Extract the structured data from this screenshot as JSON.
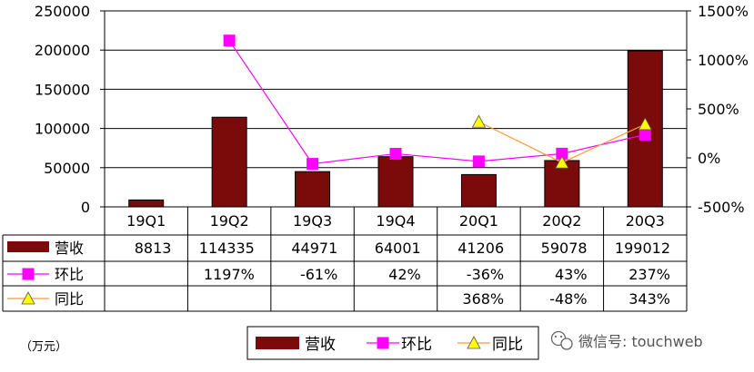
{
  "chart_data": {
    "type": "bar",
    "categories": [
      "19Q1",
      "19Q2",
      "19Q3",
      "19Q4",
      "20Q1",
      "20Q2",
      "20Q3"
    ],
    "y_left": {
      "ylim": [
        0,
        250000
      ],
      "ticks": [
        "0",
        "50000",
        "100000",
        "150000",
        "200000",
        "250000"
      ]
    },
    "y_right": {
      "ylim": [
        -500,
        1500
      ],
      "ticks": [
        "-500%",
        "0%",
        "500%",
        "1000%",
        "1500%"
      ]
    },
    "series": [
      {
        "name": "营收",
        "type": "bar",
        "axis": "left",
        "color": "#7b0b0b",
        "values": [
          8813,
          114335,
          44971,
          64001,
          41206,
          59078,
          199012
        ],
        "labels": [
          "8813",
          "114335",
          "44971",
          "64001",
          "41206",
          "59078",
          "199012"
        ]
      },
      {
        "name": "环比",
        "type": "line",
        "axis": "right",
        "color": "#ff00ff",
        "marker": "square",
        "values": [
          null,
          1197,
          -61,
          42,
          -36,
          43,
          237
        ],
        "labels": [
          "",
          "1197%",
          "-61%",
          "42%",
          "-36%",
          "43%",
          "237%"
        ]
      },
      {
        "name": "同比",
        "type": "line",
        "axis": "right",
        "color": "#ff9933",
        "marker_color": "#ffff00",
        "marker": "triangle",
        "values": [
          null,
          null,
          null,
          null,
          368,
          -48,
          343
        ],
        "labels": [
          "",
          "",
          "",
          "",
          "368%",
          "-48%",
          "343%"
        ]
      }
    ],
    "legend_position": "bottom-center",
    "grid": true
  },
  "unit_label": "（万元）",
  "watermark": "微信号: touchweb"
}
